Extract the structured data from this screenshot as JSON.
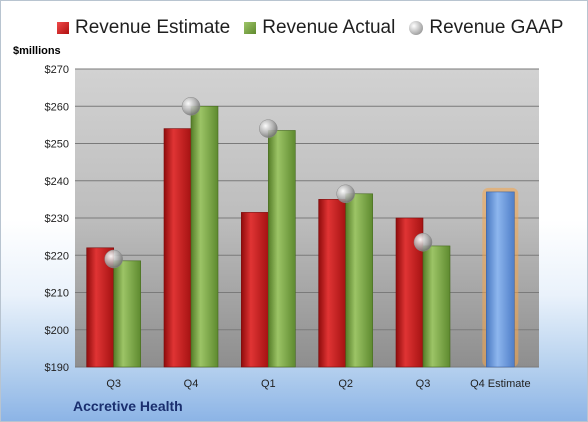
{
  "chart_data": {
    "type": "bar",
    "ylabel": "$millions",
    "ylim": [
      190,
      270
    ],
    "yticks": [
      "$190",
      "$200",
      "$210",
      "$220",
      "$230",
      "$240",
      "$250",
      "$260",
      "$270"
    ],
    "categories": [
      "Q3",
      "Q4",
      "Q1",
      "Q2",
      "Q3",
      "Q4 Estimate"
    ],
    "series": [
      {
        "name": "Revenue Estimate",
        "type": "bar",
        "values": [
          222,
          254,
          231.5,
          235,
          230,
          null
        ]
      },
      {
        "name": "Revenue Actual",
        "type": "bar",
        "values": [
          218.5,
          260,
          253.5,
          236.5,
          222.5,
          null
        ]
      },
      {
        "name": "Revenue GAAP",
        "type": "marker",
        "values": [
          219,
          260,
          254,
          236.5,
          223.5,
          null
        ]
      }
    ],
    "forecast": {
      "category": "Q4 Estimate",
      "value": 237
    },
    "grid": true,
    "legend": "top",
    "colors": {
      "estimate": "#c8201e",
      "actual": "#7ea84a",
      "gaap": "#a9a9a9",
      "forecast": "#6f9fe0",
      "forecast_glow": "#f5a54a"
    }
  },
  "legend_labels": [
    "Revenue Estimate",
    "Revenue Actual",
    "Revenue GAAP"
  ],
  "company": "Accretive Health"
}
